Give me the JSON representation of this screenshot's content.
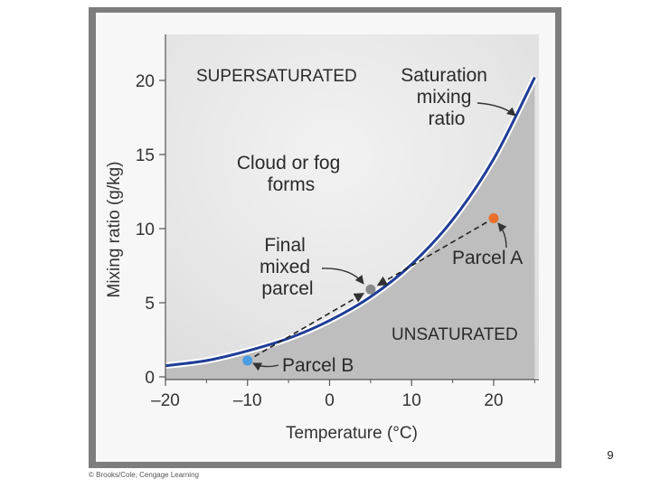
{
  "chart_data": {
    "type": "line",
    "title": "",
    "xlabel": "Temperature (°C)",
    "ylabel": "Mixing ratio (g/kg)",
    "xlim": [
      -20,
      25
    ],
    "ylim": [
      0,
      23
    ],
    "x_ticks": [
      -20,
      -10,
      0,
      10,
      20
    ],
    "x_tick_labels": [
      "–20",
      "–10",
      "0",
      "10",
      "20"
    ],
    "y_ticks": [
      0,
      5,
      10,
      15,
      20
    ],
    "y_tick_labels": [
      "0",
      "5",
      "10",
      "15",
      "20"
    ],
    "grid": false,
    "series": [
      {
        "name": "Saturation mixing ratio",
        "x": [
          -20,
          -15,
          -10,
          -5,
          0,
          5,
          10,
          15,
          20,
          25
        ],
        "y": [
          0.75,
          1.1,
          1.75,
          2.6,
          3.8,
          5.4,
          7.6,
          10.6,
          14.7,
          20.2
        ]
      }
    ],
    "points": [
      {
        "name": "Parcel A",
        "x": 20,
        "y": 10.7,
        "color": "#e8702a"
      },
      {
        "name": "Parcel B",
        "x": -10,
        "y": 1.1,
        "color": "#4a9de0"
      },
      {
        "name": "Final mixed parcel",
        "x": 5,
        "y": 5.9,
        "color": "#8a8a8a"
      }
    ],
    "regions": {
      "supersaturated": "SUPERSATURATED",
      "unsaturated": "UNSATURATED"
    },
    "annotations": {
      "curve_label": [
        "Saturation",
        "mixing",
        "ratio"
      ],
      "cloud_label": [
        "Cloud or fog",
        "forms"
      ],
      "mixed_label": [
        "Final",
        "mixed",
        "parcel"
      ],
      "parcel_a_label": "Parcel A",
      "parcel_b_label": "Parcel B"
    },
    "colors": {
      "curve": "#1f3c96",
      "unsaturated_fill": "#bebebe",
      "supersaturated_fill": "#eaeaea",
      "frame": "#7a7a7a"
    }
  },
  "slide": {
    "number": "9"
  },
  "credit": "© Brooks/Cole, Cengage Learning"
}
